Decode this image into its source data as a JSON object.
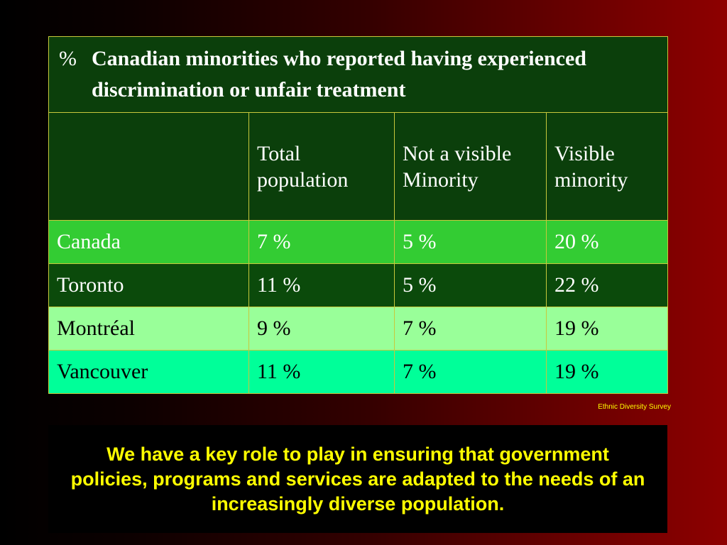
{
  "table": {
    "title_symbol": "%",
    "title": "Canadian minorities who reported having experienced discrimination or unfair treatment",
    "headers": [
      "",
      "Total population",
      "Not a visible Minority",
      "Visible minority"
    ],
    "rows": [
      {
        "region": "Canada",
        "total": "7 %",
        "not_visible": "5 %",
        "visible": "20 %"
      },
      {
        "region": "Toronto",
        "total": "11 %",
        "not_visible": "5 %",
        "visible": "22 %"
      },
      {
        "region": "Montréal",
        "total": "9 %",
        "not_visible": "7 %",
        "visible": "19 %"
      },
      {
        "region": "Vancouver",
        "total": "11 %",
        "not_visible": "7 %",
        "visible": "19 %"
      }
    ]
  },
  "source": "Ethnic Diversity Survey",
  "message": "We have a key role to play in ensuring that government policies, programs and services are adapted to the needs of an increasingly diverse population.",
  "colors": {
    "title_bg": "#0b3f0b",
    "canada_row": "#33cc33",
    "toronto_row": "#0b4a0b",
    "montreal_row": "#99ff99",
    "vancouver_row": "#00ff99",
    "message_text": "#ffff00"
  }
}
